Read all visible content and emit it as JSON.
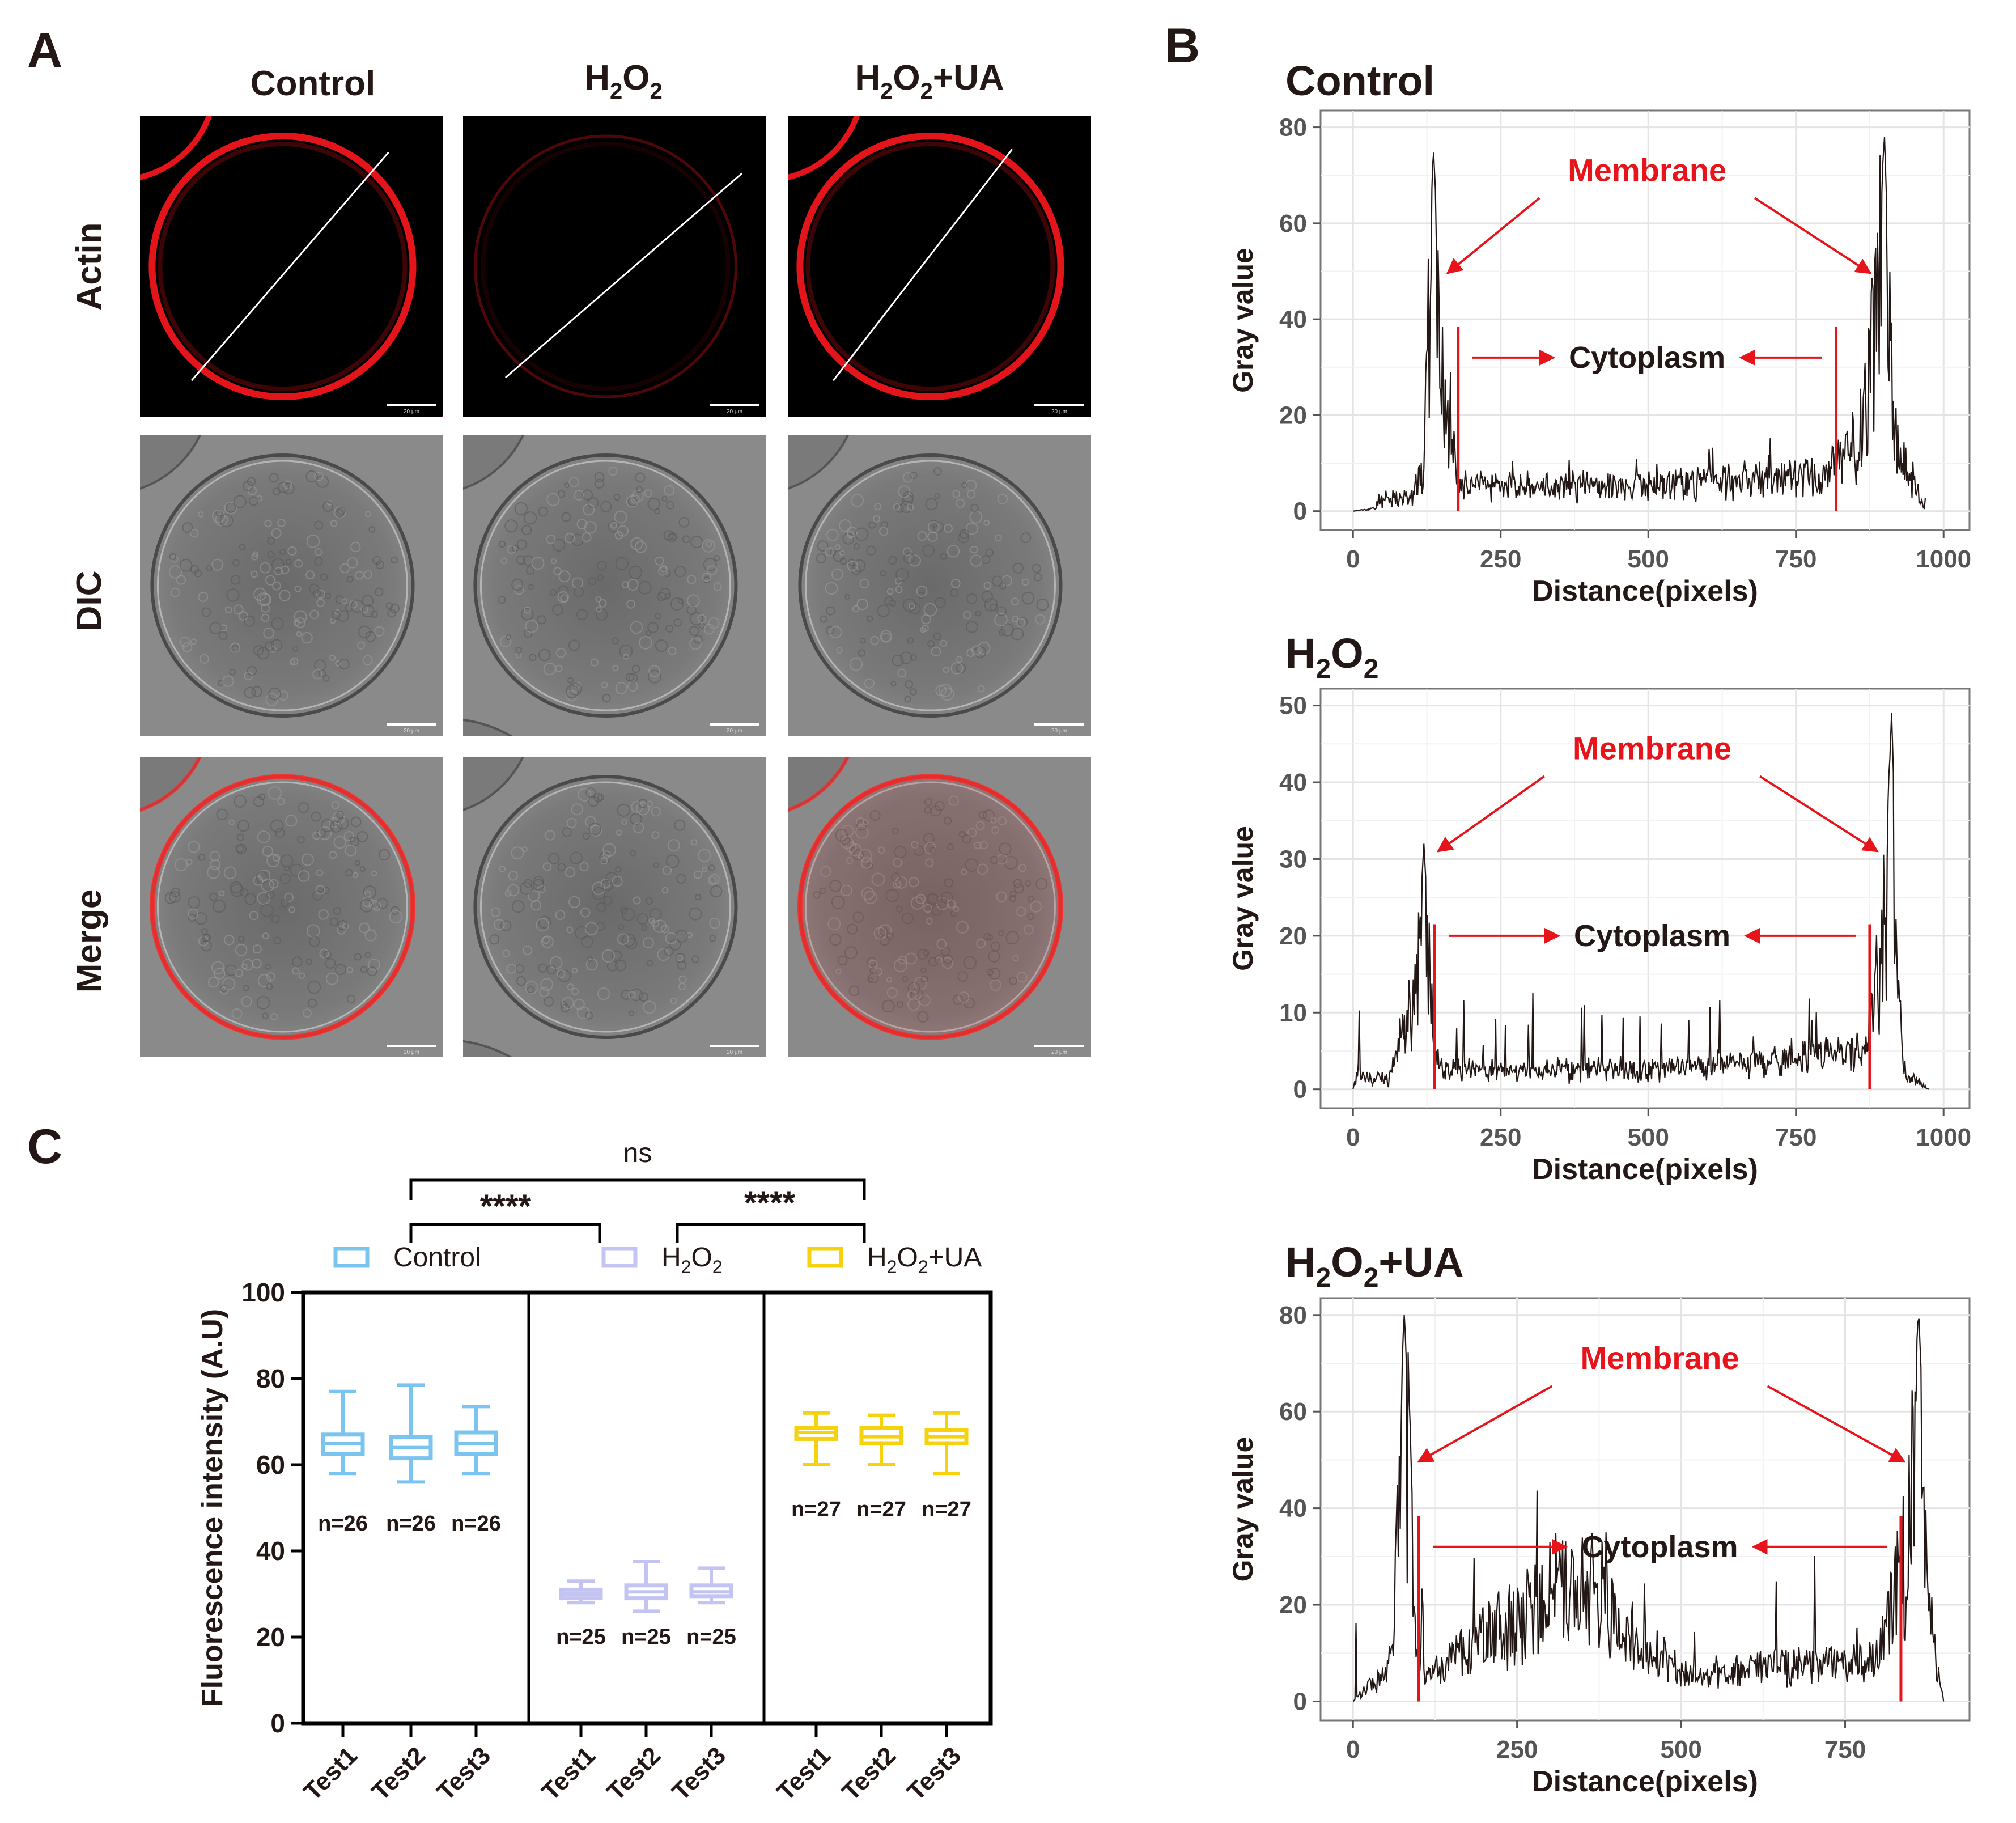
{
  "panel_letters": {
    "a": "A",
    "b": "B",
    "c": "C"
  },
  "panel_a": {
    "columns": [
      {
        "base": "Control",
        "sub": "",
        "tail": ""
      },
      {
        "base": "H",
        "sub": "2",
        "mid": "O",
        "sub2": "2",
        "tail": ""
      },
      {
        "base": "H",
        "sub": "2",
        "mid": "O",
        "sub2": "2",
        "tail": "+UA"
      }
    ],
    "rows": [
      "Actin",
      "DIC",
      "Merge"
    ],
    "scale_bar_text": "20 μm"
  },
  "panel_b": {
    "plots": [
      {
        "title_base": "Control",
        "title_sub": "",
        "title_mid": "",
        "title_sub2": "",
        "title_tail": ""
      },
      {
        "title_base": "H",
        "title_sub": "2",
        "title_mid": "O",
        "title_sub2": "2",
        "title_tail": ""
      },
      {
        "title_base": "H",
        "title_sub": "2",
        "title_mid": "O",
        "title_sub2": "2",
        "title_tail": "+UA"
      }
    ],
    "membrane_label": "Membrane",
    "cytoplasm_label": "Cytoplasm",
    "ylabel": "Gray value",
    "xlabel": "Distance(pixels)"
  },
  "panel_c": {
    "ylabel": "Fluorescence intensity (A.U)",
    "legend": [
      {
        "base": "Control",
        "sub": "",
        "mid": "",
        "sub2": "",
        "tail": "",
        "color": "#7cc4f0"
      },
      {
        "base": "H",
        "sub": "2",
        "mid": "O",
        "sub2": "2",
        "tail": "",
        "color": "#c4c4f2"
      },
      {
        "base": "H",
        "sub": "2",
        "mid": "O",
        "sub2": "2",
        "tail": "+UA",
        "color": "#f5d20c"
      }
    ],
    "sig": {
      "ns": "ns",
      "s1": "****",
      "s2": "****"
    }
  },
  "chart_data": [
    {
      "type": "line",
      "title": "Control",
      "xlabel": "Distance(pixels)",
      "ylabel": "Gray value",
      "xlim": [
        0,
        1000
      ],
      "ylim": [
        0,
        80
      ],
      "x_ticks": [
        0,
        250,
        500,
        750,
        1000
      ],
      "y_ticks": [
        0,
        20,
        40,
        60,
        80
      ],
      "grid": true,
      "profile_peaks": [
        {
          "x": 0,
          "y": 0
        },
        {
          "x": 100,
          "y": 2
        },
        {
          "x": 120,
          "y": 10
        },
        {
          "x": 130,
          "y": 55
        },
        {
          "x": 136,
          "y": 76
        },
        {
          "x": 150,
          "y": 40
        },
        {
          "x": 165,
          "y": 25
        },
        {
          "x": 180,
          "y": 5
        },
        {
          "x": 500,
          "y": 5
        },
        {
          "x": 800,
          "y": 8
        },
        {
          "x": 850,
          "y": 15
        },
        {
          "x": 880,
          "y": 40
        },
        {
          "x": 900,
          "y": 78
        },
        {
          "x": 915,
          "y": 20
        },
        {
          "x": 970,
          "y": 0
        }
      ],
      "membrane_peaks_x": [
        136,
        900
      ],
      "cytoplasm_bounds_x": [
        178,
        818
      ],
      "annotations": [
        "Membrane",
        "Cytoplasm"
      ]
    },
    {
      "type": "line",
      "title": "H2O2",
      "xlabel": "Distance(pixels)",
      "ylabel": "Gray value",
      "xlim": [
        0,
        1000
      ],
      "ylim": [
        0,
        50
      ],
      "x_ticks": [
        0,
        250,
        500,
        750,
        1000
      ],
      "y_ticks": [
        0,
        10,
        20,
        30,
        40,
        50
      ],
      "grid": true,
      "profile_peaks": [
        {
          "x": 0,
          "y": 0
        },
        {
          "x": 8,
          "y": 3
        },
        {
          "x": 60,
          "y": 0
        },
        {
          "x": 110,
          "y": 18
        },
        {
          "x": 120,
          "y": 32
        },
        {
          "x": 135,
          "y": 10
        },
        {
          "x": 150,
          "y": 2
        },
        {
          "x": 500,
          "y": 2
        },
        {
          "x": 870,
          "y": 5
        },
        {
          "x": 900,
          "y": 25
        },
        {
          "x": 912,
          "y": 49
        },
        {
          "x": 930,
          "y": 3
        },
        {
          "x": 975,
          "y": 0
        }
      ],
      "membrane_peaks_x": [
        120,
        912
      ],
      "cytoplasm_bounds_x": [
        138,
        875
      ],
      "annotations": [
        "Membrane",
        "Cytoplasm"
      ]
    },
    {
      "type": "line",
      "title": "H2O2+UA",
      "xlabel": "Distance(pixels)",
      "ylabel": "Gray value",
      "xlim": [
        0,
        900
      ],
      "ylim": [
        0,
        80
      ],
      "x_ticks": [
        0,
        250,
        500,
        750
      ],
      "y_ticks": [
        0,
        20,
        40,
        60,
        80
      ],
      "grid": true,
      "profile_peaks": [
        {
          "x": 0,
          "y": 0
        },
        {
          "x": 60,
          "y": 10
        },
        {
          "x": 78,
          "y": 82
        },
        {
          "x": 95,
          "y": 20
        },
        {
          "x": 110,
          "y": 5
        },
        {
          "x": 330,
          "y": 31
        },
        {
          "x": 500,
          "y": 6
        },
        {
          "x": 800,
          "y": 10
        },
        {
          "x": 845,
          "y": 40
        },
        {
          "x": 862,
          "y": 81
        },
        {
          "x": 880,
          "y": 20
        },
        {
          "x": 900,
          "y": 0
        }
      ],
      "membrane_peaks_x": [
        78,
        862
      ],
      "cytoplasm_bounds_x": [
        100,
        835
      ],
      "annotations": [
        "Membrane",
        "Cytoplasm"
      ]
    },
    {
      "type": "box",
      "ylabel": "Fluorescence intensity (A.U)",
      "ylim": [
        0,
        100
      ],
      "y_ticks": [
        0,
        20,
        40,
        60,
        80,
        100
      ],
      "categories": [
        "Test1",
        "Test2",
        "Test3",
        "Test1",
        "Test2",
        "Test3",
        "Test1",
        "Test2",
        "Test3"
      ],
      "groups": [
        {
          "name": "Control",
          "color": "#7cc4f0",
          "n_label": "n=26",
          "boxes": [
            {
              "min": 58,
              "q1": 62.5,
              "median": 65,
              "q3": 67,
              "max": 77
            },
            {
              "min": 56,
              "q1": 61.5,
              "median": 64,
              "q3": 66.5,
              "max": 78.5
            },
            {
              "min": 58,
              "q1": 62.5,
              "median": 65,
              "q3": 67.5,
              "max": 73.5
            }
          ]
        },
        {
          "name": "H2O2",
          "color": "#c4c4f2",
          "n_label": "n=25",
          "boxes": [
            {
              "min": 28,
              "q1": 29,
              "median": 30,
              "q3": 31,
              "max": 33
            },
            {
              "min": 26,
              "q1": 29,
              "median": 30.5,
              "q3": 32,
              "max": 37.5
            },
            {
              "min": 28,
              "q1": 29.5,
              "median": 30.5,
              "q3": 32,
              "max": 36
            }
          ]
        },
        {
          "name": "H2O2+UA",
          "color": "#f5d20c",
          "n_label": "n=27",
          "boxes": [
            {
              "min": 60,
              "q1": 66,
              "median": 67.5,
              "q3": 68.5,
              "max": 72
            },
            {
              "min": 60,
              "q1": 65,
              "median": 66.5,
              "q3": 68.5,
              "max": 71.5
            },
            {
              "min": 58,
              "q1": 65,
              "median": 66.5,
              "q3": 68,
              "max": 72
            }
          ]
        }
      ],
      "significance": [
        {
          "between": [
            "Control",
            "H2O2+UA"
          ],
          "label": "ns"
        },
        {
          "between": [
            "Control",
            "H2O2"
          ],
          "label": "****"
        },
        {
          "between": [
            "H2O2",
            "H2O2+UA"
          ],
          "label": "****"
        }
      ]
    }
  ]
}
